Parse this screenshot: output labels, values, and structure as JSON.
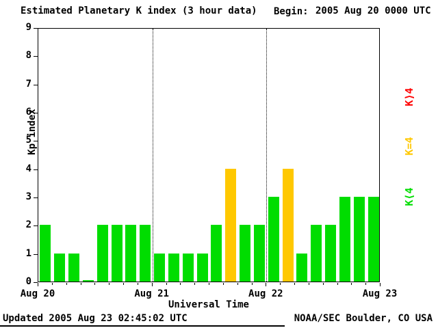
{
  "header": {
    "title": "Estimated Planetary K index (3 hour data)",
    "begin_label": "Begin:",
    "begin_value": "2005 Aug 20 0000 UTC"
  },
  "axes": {
    "ylabel": "Kp index",
    "xlabel": "Universal Time"
  },
  "legend": [
    {
      "name": "legend-k-gt-4",
      "label": "K⟩4",
      "color": "#ff0000"
    },
    {
      "name": "legend-k-eq-4",
      "label": "K=4",
      "color": "#ffc800"
    },
    {
      "name": "legend-k-lt-4",
      "label": "K⟨4",
      "color": "#00dd00"
    }
  ],
  "footer": {
    "updated": "Updated 2005 Aug 23 02:45:02 UTC",
    "credit": "NOAA/SEC Boulder, CO USA"
  },
  "chart_data": {
    "type": "bar",
    "title": "Estimated Planetary K index (3 hour data)",
    "begin": "2005 Aug 20 0000 UTC",
    "xlabel": "Universal Time",
    "ylabel": "Kp index",
    "ylim": [
      0,
      9
    ],
    "y_ticks": [
      0,
      1,
      2,
      3,
      4,
      5,
      6,
      7,
      8,
      9
    ],
    "x_tick_labels": [
      "Aug 20",
      "Aug 21",
      "Aug 22",
      "Aug 23"
    ],
    "bars_per_day": 8,
    "interval_hours": 3,
    "values": [
      2,
      1,
      1,
      0,
      2,
      2,
      2,
      2,
      1,
      1,
      1,
      1,
      2,
      4,
      2,
      2,
      3,
      4,
      1,
      2,
      2,
      3,
      3,
      3
    ],
    "colors": {
      "k_lt_4": "#00dd00",
      "k_eq_4": "#ffc800",
      "k_gt_4": "#ff0000"
    },
    "day_separator_lines": [
      1,
      2
    ],
    "grid": false,
    "legend_position": "right"
  }
}
